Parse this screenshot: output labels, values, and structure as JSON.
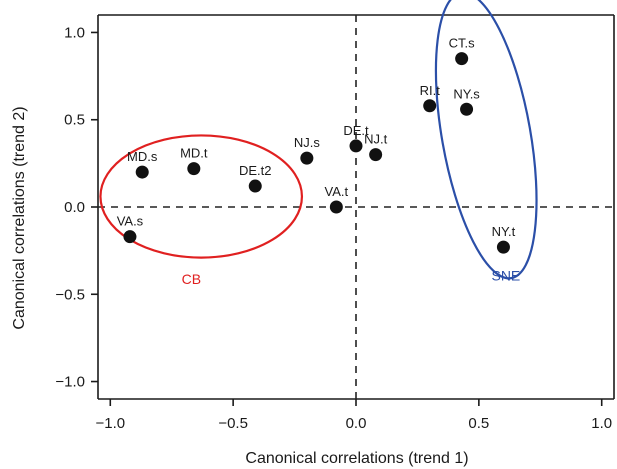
{
  "chart_data": {
    "type": "scatter",
    "title": "",
    "xlabel": "Canonical correlations (trend 1)",
    "ylabel": "Canonical correlations (trend 2)",
    "xlim": [
      -1.05,
      1.05
    ],
    "ylim": [
      -1.1,
      1.1
    ],
    "xticks": [
      -1.0,
      -0.5,
      0.0,
      0.5,
      1.0
    ],
    "xtick_labels": [
      "−1.0",
      "−0.5",
      "0.0",
      "0.5",
      "1.0"
    ],
    "yticks": [
      1.0,
      0.5,
      0.0,
      -0.5,
      -1.0
    ],
    "ytick_labels": [
      "1.0",
      "0.5",
      "0.0",
      "−0.5",
      "−1.0"
    ],
    "grid": false,
    "reference_lines": {
      "x": 0,
      "y": 0,
      "style": "dashed"
    },
    "points": [
      {
        "label": "CT.s",
        "x": 0.43,
        "y": 0.85
      },
      {
        "label": "RI.t",
        "x": 0.3,
        "y": 0.58
      },
      {
        "label": "NY.s",
        "x": 0.45,
        "y": 0.56
      },
      {
        "label": "NY.t",
        "x": 0.6,
        "y": -0.23
      },
      {
        "label": "DE.t",
        "x": 0.0,
        "y": 0.35
      },
      {
        "label": "NJ.t",
        "x": 0.08,
        "y": 0.3
      },
      {
        "label": "NJ.s",
        "x": -0.2,
        "y": 0.28
      },
      {
        "label": "VA.t",
        "x": -0.08,
        "y": 0.0
      },
      {
        "label": "MD.s",
        "x": -0.87,
        "y": 0.2
      },
      {
        "label": "MD.t",
        "x": -0.66,
        "y": 0.22
      },
      {
        "label": "DE.t2",
        "x": -0.41,
        "y": 0.12
      },
      {
        "label": "VA.s",
        "x": -0.92,
        "y": -0.17
      }
    ],
    "groups": [
      {
        "name": "CB",
        "color": "#e02020",
        "cx": -0.63,
        "cy": 0.06,
        "rx": 0.41,
        "ry": 0.35,
        "rotation": 0,
        "label_x": -0.67,
        "label_y": -0.44
      },
      {
        "name": "SNE",
        "color": "#2b4fa8",
        "cx": 0.53,
        "cy": 0.41,
        "rx": 0.18,
        "ry": 0.83,
        "rotation": -10,
        "label_x": 0.61,
        "label_y": -0.42
      }
    ],
    "colors": {
      "point": "#111111",
      "axes": "#1a1a1a",
      "reference": "#222222"
    }
  }
}
